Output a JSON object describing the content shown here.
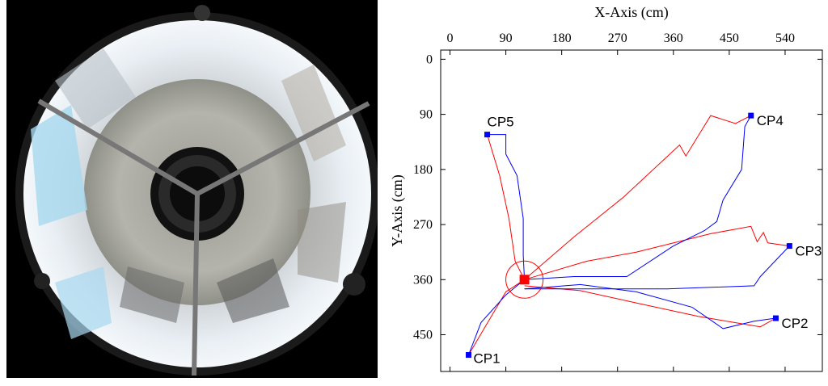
{
  "chart_data": {
    "type": "line",
    "xlabel": "X-Axis (cm)",
    "ylabel": "Y-Axis (cm)",
    "x_ticks": [
      0,
      90,
      180,
      270,
      360,
      450,
      540
    ],
    "y_ticks": [
      0,
      90,
      180,
      270,
      360,
      450
    ],
    "xlim": [
      -15,
      600
    ],
    "ylim": [
      -15,
      510
    ],
    "x_axis_position": "top",
    "y_axis_inverted": true,
    "grid": false,
    "start": {
      "x": 120,
      "y": 360,
      "color": "#ff0000"
    },
    "start_circle_radius": 30,
    "checkpoints": [
      {
        "label": "CP1",
        "x": 30,
        "y": 483
      },
      {
        "label": "CP2",
        "x": 525,
        "y": 423
      },
      {
        "label": "CP3",
        "x": 547,
        "y": 305
      },
      {
        "label": "CP4",
        "x": 485,
        "y": 92
      },
      {
        "label": "CP5",
        "x": 60,
        "y": 123
      }
    ],
    "series": [
      {
        "color": "#ff0000",
        "paths": [
          [
            [
              120,
              360
            ],
            [
              90,
              380
            ],
            [
              55,
              440
            ],
            [
              30,
              483
            ]
          ],
          [
            [
              120,
              360
            ],
            [
              105,
              330
            ],
            [
              95,
              260
            ],
            [
              80,
              190
            ],
            [
              68,
              150
            ],
            [
              60,
              123
            ]
          ],
          [
            [
              120,
              360
            ],
            [
              200,
              290
            ],
            [
              280,
              225
            ],
            [
              370,
              140
            ],
            [
              380,
              158
            ],
            [
              420,
              92
            ],
            [
              460,
              105
            ],
            [
              485,
              92
            ]
          ],
          [
            [
              120,
              360
            ],
            [
              220,
              330
            ],
            [
              300,
              315
            ],
            [
              420,
              285
            ],
            [
              485,
              273
            ],
            [
              495,
              298
            ],
            [
              505,
              283
            ],
            [
              512,
              300
            ],
            [
              547,
              305
            ]
          ],
          [
            [
              120,
              370
            ],
            [
              210,
              378
            ],
            [
              300,
              398
            ],
            [
              400,
              420
            ],
            [
              470,
              432
            ],
            [
              500,
              437
            ],
            [
              525,
              423
            ]
          ]
        ]
      },
      {
        "color": "#0000ff",
        "paths": [
          [
            [
              120,
              360
            ],
            [
              90,
              385
            ],
            [
              50,
              430
            ],
            [
              30,
              483
            ]
          ],
          [
            [
              120,
              360
            ],
            [
              118,
              320
            ],
            [
              118,
              260
            ],
            [
              108,
              190
            ],
            [
              90,
              155
            ],
            [
              90,
              123
            ],
            [
              60,
              123
            ]
          ],
          [
            [
              120,
              360
            ],
            [
              200,
              355
            ],
            [
              285,
              355
            ],
            [
              360,
              305
            ],
            [
              410,
              280
            ],
            [
              430,
              265
            ],
            [
              440,
              230
            ],
            [
              470,
              180
            ],
            [
              475,
              110
            ],
            [
              485,
              92
            ]
          ],
          [
            [
              120,
              375
            ],
            [
              250,
              375
            ],
            [
              350,
              375
            ],
            [
              490,
              370
            ],
            [
              500,
              355
            ],
            [
              547,
              305
            ]
          ],
          [
            [
              120,
              375
            ],
            [
              210,
              368
            ],
            [
              300,
              380
            ],
            [
              390,
              405
            ],
            [
              440,
              440
            ],
            [
              490,
              428
            ],
            [
              525,
              423
            ]
          ]
        ]
      }
    ]
  }
}
